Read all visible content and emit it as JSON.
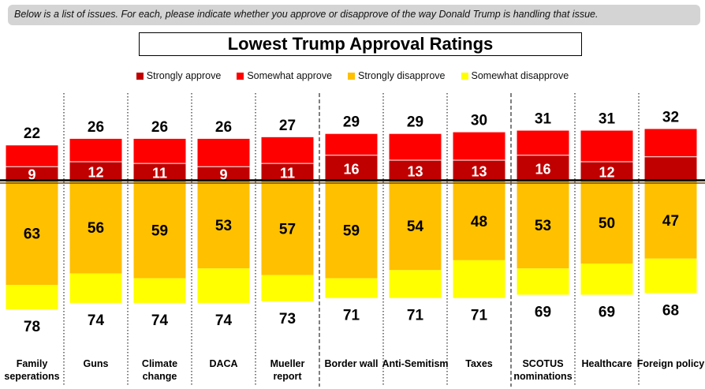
{
  "question": "Below is a list of issues. For each, please indicate whether you approve or disapprove of the way Donald Trump is handling that issue.",
  "colors": {
    "strongly_approve": "#c00000",
    "somewhat_approve": "#ff0000",
    "strongly_disapprove": "#ffc000",
    "somewhat_disapprove": "#ffff00"
  },
  "chart_data": {
    "type": "bar",
    "title": "Lowest Trump Approval Ratings",
    "categories": [
      "Family\nseperations",
      "Guns",
      "Climate\nchange",
      "DACA",
      "Mueller\nreport",
      "Border wall",
      "Anti-Semitism",
      "Taxes",
      "SCOTUS\nnominations",
      "Healthcare",
      "Foreign policy"
    ],
    "series": [
      {
        "name": "Strongly approve",
        "values": [
          9,
          12,
          11,
          9,
          11,
          16,
          13,
          13,
          16,
          12,
          15
        ]
      },
      {
        "name": "Somewhat approve",
        "values": [
          13,
          14,
          15,
          17,
          16,
          13,
          16,
          17,
          15,
          19,
          17
        ]
      },
      {
        "name": "Strongly disapprove",
        "values": [
          63,
          56,
          59,
          53,
          57,
          59,
          54,
          48,
          53,
          50,
          47
        ]
      },
      {
        "name": "Somewhat disapprove",
        "values": [
          15,
          18,
          15,
          21,
          16,
          12,
          17,
          23,
          16,
          19,
          21
        ]
      }
    ],
    "strongly_approve_labels": [
      "9",
      "12",
      "11",
      "9",
      "11",
      "16",
      "13",
      "13",
      "16",
      "12",
      ""
    ],
    "total_approve": [
      22,
      26,
      26,
      26,
      27,
      29,
      29,
      30,
      31,
      31,
      32
    ],
    "total_disapprove": [
      78,
      74,
      74,
      74,
      73,
      71,
      71,
      71,
      69,
      69,
      68
    ],
    "legend_position": "top"
  }
}
